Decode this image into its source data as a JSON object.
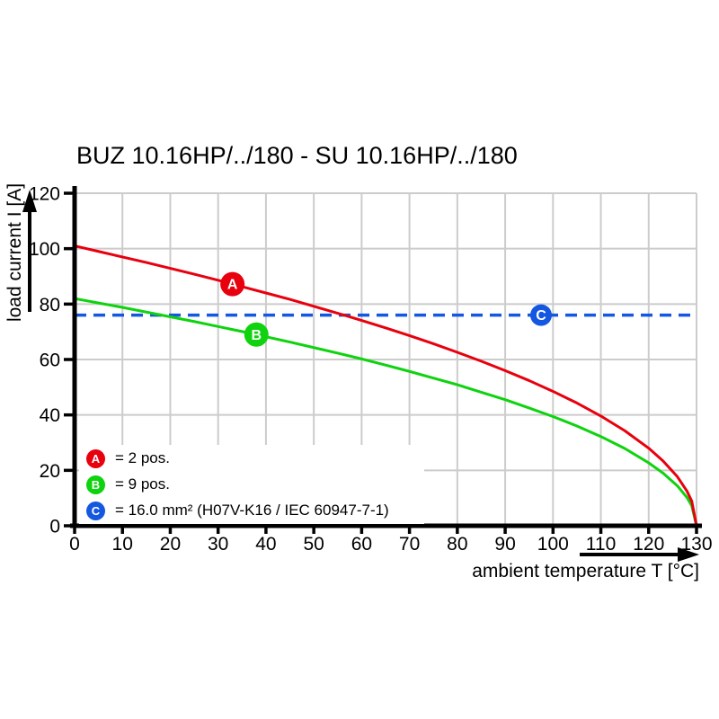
{
  "title": "BUZ 10.16HP/../180 - SU 10.16HP/../180",
  "colors": {
    "red": "#e8000e",
    "green": "#0ed30e",
    "blue": "#1457e0",
    "grid": "#cccccc",
    "axis": "#000000",
    "background": "#ffffff"
  },
  "axes": {
    "x_label": "ambient temperature T [°C]",
    "y_label": "load current I [A]"
  },
  "chart_data": {
    "type": "line",
    "title": "BUZ 10.16HP/../180 - SU 10.16HP/../180",
    "xlabel": "ambient temperature T [°C]",
    "ylabel": "load current I [A]",
    "xlim": [
      0,
      130
    ],
    "ylim": [
      0,
      120
    ],
    "xticks": [
      0,
      10,
      20,
      30,
      40,
      50,
      60,
      70,
      80,
      90,
      100,
      110,
      120,
      130
    ],
    "yticks": [
      0,
      20,
      40,
      60,
      80,
      100,
      120
    ],
    "grid": true,
    "legend_position": "bottom-left",
    "x": [
      0,
      5,
      10,
      15,
      20,
      25,
      30,
      35,
      40,
      45,
      50,
      55,
      60,
      65,
      70,
      75,
      80,
      85,
      90,
      95,
      100,
      105,
      110,
      115,
      120,
      123,
      126,
      128,
      129,
      130
    ],
    "series": [
      {
        "name": "A",
        "label": "2 pos.",
        "color": "#0ed30e-placeholder-ignored",
        "colorKey": "green-placeholder"
      }
    ]
  },
  "chart": {
    "x": [
      0,
      5,
      10,
      15,
      20,
      25,
      30,
      35,
      40,
      45,
      50,
      55,
      60,
      65,
      70,
      75,
      80,
      85,
      90,
      95,
      100,
      105,
      110,
      115,
      120,
      123,
      126,
      128,
      129,
      130
    ],
    "series": [
      {
        "name": "B",
        "label": "9 pos.",
        "color": "#0ed30e",
        "style": "solid",
        "values": [
          82,
          80.4,
          78.8,
          77.1,
          75.4,
          73.7,
          71.9,
          70.1,
          68.2,
          66.3,
          64.3,
          62.3,
          60.2,
          58,
          55.7,
          53.3,
          50.9,
          48.2,
          45.5,
          42.5,
          39.4,
          36,
          32.2,
          27.9,
          22.7,
          19,
          14.4,
          10.2,
          7.2,
          0
        ]
      },
      {
        "name": "A",
        "label": "2 pos.",
        "color": "#e8000e",
        "style": "solid",
        "values": [
          101,
          99,
          97,
          95,
          92.9,
          90.8,
          88.6,
          86.3,
          84,
          81.7,
          79.2,
          76.7,
          74.1,
          71.4,
          68.6,
          65.7,
          62.6,
          59.4,
          56,
          52.4,
          48.5,
          44.3,
          39.6,
          34.3,
          28,
          23.4,
          17.7,
          12.5,
          8.9,
          0
        ]
      }
    ],
    "constant_line": {
      "name": "C",
      "label": "16.0 mm² (H07V-K16 / IEC 60947-7-1)",
      "color": "#1457e0",
      "style": "dashed",
      "value": 76
    },
    "markers": [
      {
        "letter": "A",
        "t": 33,
        "i": 87.2,
        "color": "#e8000e",
        "r": 13.5
      },
      {
        "letter": "B",
        "t": 38,
        "i": 69,
        "color": "#0ed30e",
        "r": 13.5
      },
      {
        "letter": "C",
        "t": 97.5,
        "i": 76,
        "color": "#1457e0",
        "r": 12
      }
    ]
  },
  "legend": {
    "items": [
      {
        "letter": "A",
        "color": "#e8000e",
        "text": "= 2 pos."
      },
      {
        "letter": "B",
        "color": "#0ed30e",
        "text": "= 9 pos."
      },
      {
        "letter": "C",
        "color": "#1457e0",
        "text": "= 16.0 mm² (H07V-K16 / IEC 60947-7-1)"
      }
    ]
  }
}
